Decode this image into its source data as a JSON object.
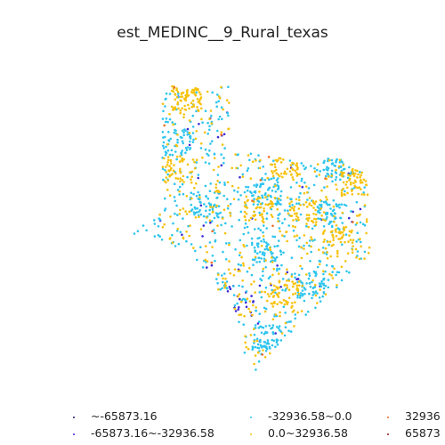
{
  "chart_data": {
    "type": "scatter",
    "title": "est_MEDINC__9_Rural_texas",
    "xlabel": "",
    "ylabel": "",
    "axes_visible": false,
    "grid": false,
    "legend_position": "bottom",
    "series": [
      {
        "name": "~-65873.16",
        "color": "#1a1a6e",
        "count": 0
      },
      {
        "name": "-65873.16~-32936.58",
        "color": "#3a2bd6",
        "count": 60
      },
      {
        "name": "-32936.58~0.0",
        "color": "#2ec5ee",
        "count": 900
      },
      {
        "name": "0.0~32936.58",
        "color": "#f7c20d",
        "count": 750
      },
      {
        "name": "32936",
        "color": "#f06a22",
        "count": 12
      },
      {
        "name": "65873",
        "color": "#8b1a10",
        "count": 0
      }
    ]
  }
}
